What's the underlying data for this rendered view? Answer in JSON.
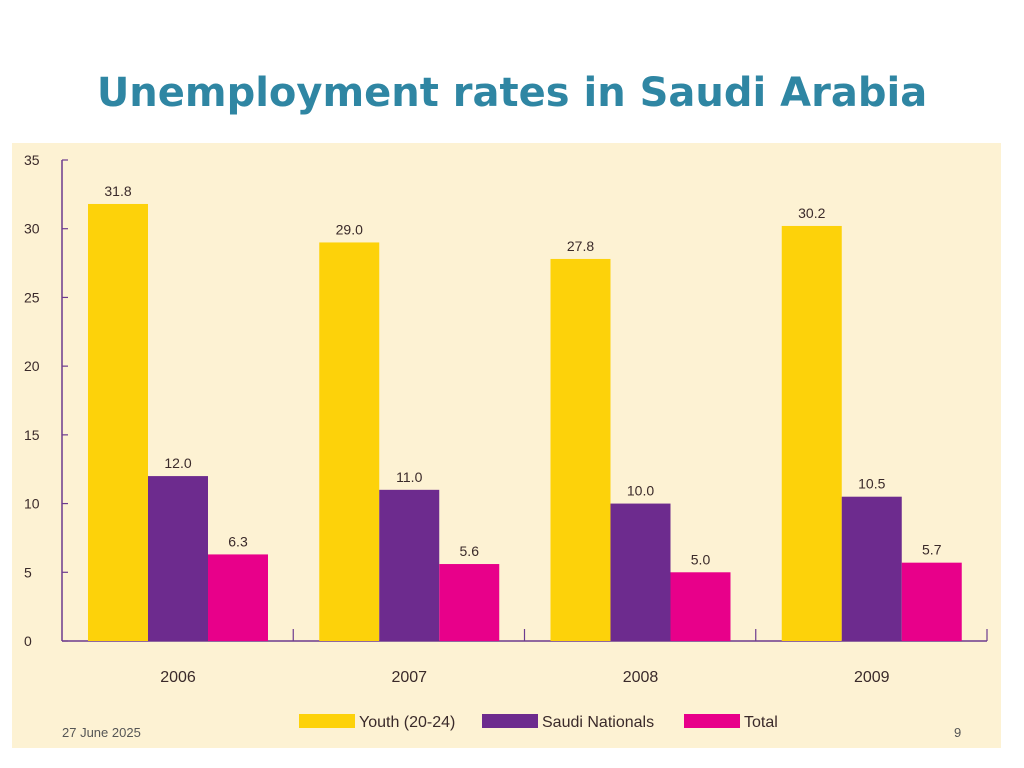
{
  "slide": {
    "title": "Unemployment rates in Saudi Arabia",
    "date": "27 June 2025",
    "page_number": "9"
  },
  "chart_data": {
    "type": "bar",
    "title": "",
    "xlabel": "",
    "ylabel": "",
    "categories": [
      "2006",
      "2007",
      "2008",
      "2009"
    ],
    "ylim": [
      0,
      35
    ],
    "yticks": [
      0,
      5,
      10,
      15,
      20,
      25,
      30,
      35
    ],
    "grid": false,
    "legend_position": "bottom",
    "series": [
      {
        "name": "Youth (20-24)",
        "color": "#fdd20a",
        "values": [
          31.8,
          29.0,
          27.8,
          30.2
        ],
        "labels": [
          "31.8",
          "29.0",
          "27.8",
          "30.2"
        ]
      },
      {
        "name": "Saudi Nationals",
        "color": "#6d2b8e",
        "values": [
          12.0,
          11.0,
          10.0,
          10.5
        ],
        "labels": [
          "12.0",
          "11.0",
          "10.0",
          "10.5"
        ]
      },
      {
        "name": "Total",
        "color": "#e8008a",
        "values": [
          6.3,
          5.6,
          5.0,
          5.7
        ],
        "labels": [
          "6.3",
          "5.6",
          "5.0",
          "5.7"
        ]
      }
    ]
  }
}
